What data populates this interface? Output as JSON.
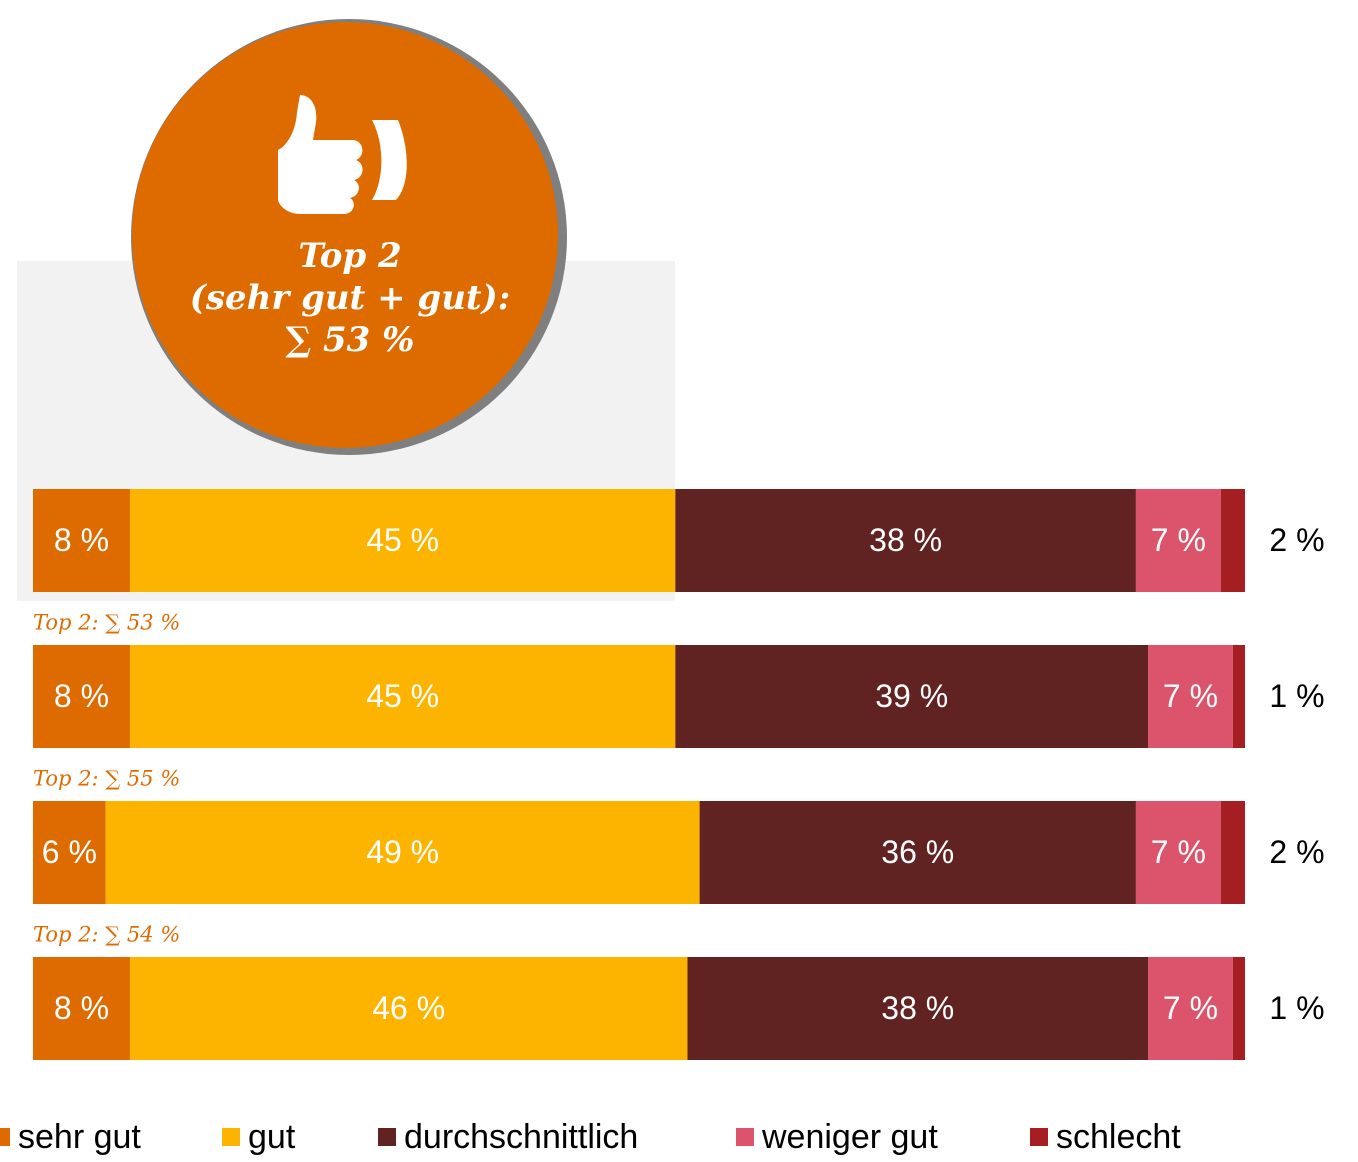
{
  "chart_data": {
    "type": "stacked-bar-horizontal",
    "categories": [
      null,
      null,
      null,
      null
    ],
    "callout": [
      "Top 2",
      "(sehr gut + gut):",
      "∑ 53 %"
    ],
    "annotations": [
      null,
      "Top 2: ∑ 53 %",
      "Top 2: ∑ 55 %",
      "Top 2: ∑ 54 %"
    ],
    "series": [
      {
        "name": "sehr gut",
        "color": "#dd6b00",
        "values": [
          8,
          8,
          6,
          8
        ],
        "value_labels": [
          "8 %",
          "8 %",
          "6 %",
          "8 %"
        ]
      },
      {
        "name": "gut",
        "color": "#fdb400",
        "values": [
          45,
          45,
          49,
          46
        ],
        "value_labels": [
          "45 %",
          "45 %",
          "49 %",
          "46 %"
        ]
      },
      {
        "name": "durchschnittlich",
        "color": "#612222",
        "values": [
          38,
          39,
          36,
          38
        ],
        "value_labels": [
          "38 %",
          "39 %",
          "36 %",
          "38 %"
        ]
      },
      {
        "name": "weniger gut",
        "color": "#dc546c",
        "values": [
          7,
          7,
          7,
          7
        ],
        "value_labels": [
          "7 %",
          "7 %",
          "7 %",
          "7 %"
        ]
      },
      {
        "name": "schlecht",
        "color": "#a51e22",
        "values": [
          2,
          1,
          2,
          1
        ],
        "value_labels": [
          "2 %",
          "1 %",
          "2 %",
          "1 %"
        ]
      }
    ]
  }
}
